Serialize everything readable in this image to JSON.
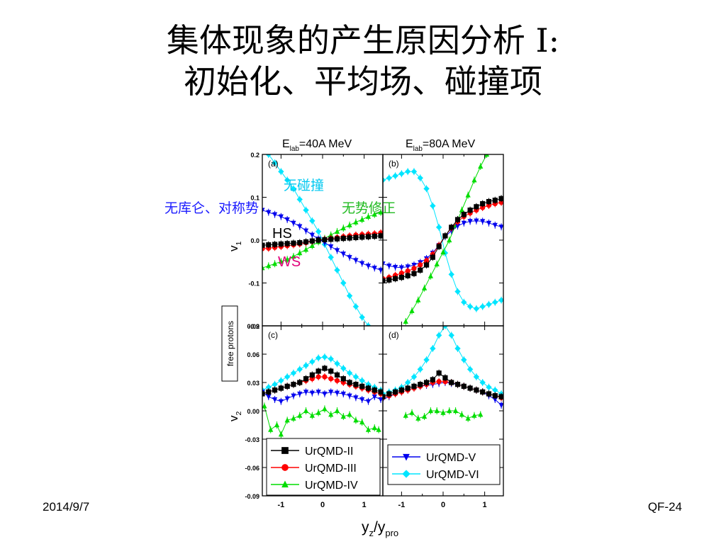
{
  "title": {
    "line1": "集体现象的产生原因分析 I:",
    "line2": "初始化、平均场、碰撞项"
  },
  "footer": {
    "date": "2014/9/7",
    "slide_id": "QF-24"
  },
  "annotations": {
    "no_collision": "无碰撞",
    "no_coulomb_symmetry": "无库仑、对称势",
    "no_potential_correction": "无势修正",
    "hs": "HS",
    "ws": "WS"
  },
  "colors": {
    "UrQMD-II": "#000000",
    "UrQMD-III": "#ff0000",
    "UrQMD-IV": "#00dd00",
    "UrQMD-V": "#0000ee",
    "UrQMD-VI": "#00e5ff",
    "annot_blue": "#1a1aff",
    "annot_cyan": "#00c8f0",
    "annot_green": "#22bb22",
    "annot_magenta": "#e0007a"
  },
  "chart_data": [
    {
      "type": "scatter",
      "panel": "(a)",
      "column_label": "E_lab=40A MeV",
      "ylabel": "v_1",
      "ylim": [
        -0.2,
        0.2
      ],
      "yticks": [
        "0.2",
        "0.1",
        "0.0",
        "-0.1",
        "-0.2"
      ],
      "xlim": [
        -1.45,
        1.45
      ],
      "series": [
        {
          "name": "UrQMD-II",
          "x": [
            -1.45,
            -1.3,
            -1.15,
            -1.0,
            -0.85,
            -0.7,
            -0.55,
            -0.4,
            -0.25,
            -0.1,
            0.05,
            0.2,
            0.35,
            0.5,
            0.65,
            0.8,
            0.95,
            1.1,
            1.25,
            1.4
          ],
          "y": [
            -0.012,
            -0.011,
            -0.01,
            -0.009,
            -0.008,
            -0.007,
            -0.006,
            -0.004,
            -0.002,
            0.0,
            0.001,
            0.002,
            0.003,
            0.004,
            0.005,
            0.006,
            0.007,
            0.008,
            0.009,
            0.01
          ]
        },
        {
          "name": "UrQMD-III",
          "x": [
            -1.45,
            -1.3,
            -1.15,
            -1.0,
            -0.85,
            -0.7,
            -0.55,
            -0.4,
            -0.25,
            -0.1,
            0.05,
            0.2,
            0.35,
            0.5,
            0.65,
            0.8,
            0.95,
            1.1,
            1.25,
            1.4
          ],
          "y": [
            -0.02,
            -0.019,
            -0.017,
            -0.015,
            -0.013,
            -0.011,
            -0.009,
            -0.006,
            -0.003,
            0.0,
            0.002,
            0.004,
            0.006,
            0.008,
            0.01,
            0.012,
            0.013,
            0.014,
            0.015,
            0.017
          ]
        },
        {
          "name": "UrQMD-IV",
          "x": [
            -1.45,
            -1.3,
            -1.15,
            -1.0,
            -0.85,
            -0.7,
            -0.55,
            -0.4,
            -0.25,
            -0.1,
            0.05,
            0.2,
            0.35,
            0.5,
            0.65,
            0.8,
            0.95,
            1.1,
            1.25,
            1.4
          ],
          "y": [
            -0.065,
            -0.06,
            -0.055,
            -0.05,
            -0.045,
            -0.038,
            -0.03,
            -0.022,
            -0.013,
            -0.004,
            0.004,
            0.012,
            0.02,
            0.028,
            0.035,
            0.042,
            0.048,
            0.055,
            0.06,
            0.065
          ]
        },
        {
          "name": "UrQMD-V",
          "x": [
            -1.45,
            -1.3,
            -1.15,
            -1.0,
            -0.85,
            -0.7,
            -0.55,
            -0.4,
            -0.25,
            -0.1,
            0.05,
            0.2,
            0.35,
            0.5,
            0.65,
            0.8,
            0.95,
            1.1,
            1.25,
            1.4
          ],
          "y": [
            0.07,
            0.065,
            0.06,
            0.055,
            0.048,
            0.04,
            0.032,
            0.022,
            0.012,
            0.003,
            -0.006,
            -0.015,
            -0.024,
            -0.032,
            -0.04,
            -0.047,
            -0.054,
            -0.06,
            -0.065,
            -0.07
          ]
        },
        {
          "name": "UrQMD-VI",
          "x": [
            -1.3,
            -1.15,
            -1.0,
            -0.85,
            -0.7,
            -0.55,
            -0.4,
            -0.25,
            -0.1,
            0.05,
            0.2,
            0.35,
            0.5,
            0.65,
            0.8,
            0.95,
            1.1
          ],
          "y": [
            0.2,
            0.18,
            0.16,
            0.14,
            0.12,
            0.095,
            0.07,
            0.045,
            0.02,
            -0.01,
            -0.04,
            -0.07,
            -0.1,
            -0.13,
            -0.155,
            -0.18,
            -0.2
          ]
        }
      ]
    },
    {
      "type": "scatter",
      "panel": "(b)",
      "column_label": "E_lab=80A MeV",
      "ylabel": "v_1",
      "ylim": [
        -0.2,
        0.2
      ],
      "xlim": [
        -1.45,
        1.45
      ],
      "series": [
        {
          "name": "UrQMD-II",
          "x": [
            -1.45,
            -1.3,
            -1.15,
            -1.0,
            -0.85,
            -0.7,
            -0.55,
            -0.4,
            -0.25,
            -0.1,
            0.05,
            0.2,
            0.35,
            0.5,
            0.65,
            0.8,
            0.95,
            1.1,
            1.25,
            1.4
          ],
          "y": [
            -0.095,
            -0.093,
            -0.09,
            -0.087,
            -0.083,
            -0.078,
            -0.07,
            -0.058,
            -0.04,
            -0.015,
            0.01,
            0.03,
            0.048,
            0.06,
            0.07,
            0.078,
            0.085,
            0.09,
            0.093,
            0.097
          ]
        },
        {
          "name": "UrQMD-III",
          "x": [
            -1.45,
            -1.3,
            -1.15,
            -1.0,
            -0.85,
            -0.7,
            -0.55,
            -0.4,
            -0.25,
            -0.1,
            0.05,
            0.2,
            0.35,
            0.5,
            0.65,
            0.8,
            0.95,
            1.1,
            1.25,
            1.4
          ],
          "y": [
            -0.09,
            -0.087,
            -0.082,
            -0.077,
            -0.072,
            -0.066,
            -0.058,
            -0.048,
            -0.033,
            -0.012,
            0.01,
            0.028,
            0.043,
            0.055,
            0.063,
            0.07,
            0.076,
            0.081,
            0.085,
            0.088
          ]
        },
        {
          "name": "UrQMD-IV",
          "x": [
            -0.9,
            -0.75,
            -0.6,
            -0.45,
            -0.3,
            -0.15,
            0.0,
            0.15,
            0.3,
            0.45,
            0.6,
            0.75,
            0.9,
            1.05
          ],
          "y": [
            -0.19,
            -0.165,
            -0.14,
            -0.112,
            -0.084,
            -0.056,
            -0.028,
            0.0,
            0.035,
            0.07,
            0.105,
            0.14,
            0.172,
            0.2
          ]
        },
        {
          "name": "UrQMD-V",
          "x": [
            -1.45,
            -1.3,
            -1.15,
            -1.0,
            -0.85,
            -0.7,
            -0.55,
            -0.4,
            -0.25,
            -0.1,
            0.05,
            0.2,
            0.35,
            0.5,
            0.65,
            0.8,
            0.95,
            1.1,
            1.25,
            1.4
          ],
          "y": [
            -0.055,
            -0.06,
            -0.063,
            -0.064,
            -0.062,
            -0.058,
            -0.052,
            -0.043,
            -0.03,
            -0.012,
            0.008,
            0.022,
            0.033,
            0.04,
            0.044,
            0.045,
            0.044,
            0.04,
            0.035,
            0.031
          ]
        },
        {
          "name": "UrQMD-VI",
          "x": [
            -1.45,
            -1.3,
            -1.15,
            -1.0,
            -0.85,
            -0.7,
            -0.55,
            -0.4,
            -0.25,
            -0.1,
            0.05,
            0.2,
            0.35,
            0.5,
            0.65,
            0.8,
            0.95,
            1.1,
            1.25,
            1.4
          ],
          "y": [
            0.14,
            0.145,
            0.15,
            0.155,
            0.16,
            0.16,
            0.145,
            0.12,
            0.08,
            0.03,
            -0.03,
            -0.08,
            -0.12,
            -0.145,
            -0.155,
            -0.16,
            -0.155,
            -0.15,
            -0.145,
            -0.14
          ]
        }
      ]
    },
    {
      "type": "scatter",
      "panel": "(c)",
      "ylabel": "v_2",
      "outer_label": "free protons",
      "ylim": [
        -0.09,
        0.09
      ],
      "yticks": [
        "0.09",
        "0.06",
        "0.03",
        "0.00",
        "-0.03",
        "-0.06",
        "-0.09"
      ],
      "xlim": [
        -1.45,
        1.45
      ],
      "xticks": [
        "-1",
        "0",
        "1"
      ],
      "series": [
        {
          "name": "UrQMD-II",
          "x": [
            -1.45,
            -1.3,
            -1.15,
            -1.0,
            -0.85,
            -0.7,
            -0.55,
            -0.4,
            -0.25,
            -0.1,
            0.05,
            0.2,
            0.35,
            0.5,
            0.65,
            0.8,
            0.95,
            1.1,
            1.25,
            1.4
          ],
          "y": [
            0.018,
            0.02,
            0.022,
            0.024,
            0.026,
            0.028,
            0.03,
            0.034,
            0.038,
            0.042,
            0.045,
            0.042,
            0.038,
            0.034,
            0.03,
            0.028,
            0.026,
            0.024,
            0.022,
            0.02
          ]
        },
        {
          "name": "UrQMD-III",
          "x": [
            -1.45,
            -1.3,
            -1.15,
            -1.0,
            -0.85,
            -0.7,
            -0.55,
            -0.4,
            -0.25,
            -0.1,
            0.05,
            0.2,
            0.35,
            0.5,
            0.65,
            0.8,
            0.95,
            1.1,
            1.25,
            1.4
          ],
          "y": [
            0.018,
            0.02,
            0.022,
            0.024,
            0.026,
            0.028,
            0.03,
            0.032,
            0.034,
            0.036,
            0.036,
            0.034,
            0.032,
            0.03,
            0.028,
            0.026,
            0.024,
            0.022,
            0.02,
            0.018
          ]
        },
        {
          "name": "UrQMD-IV",
          "x": [
            -1.4,
            -1.25,
            -1.1,
            -1.0,
            -0.85,
            -0.7,
            -0.55,
            -0.4,
            -0.25,
            -0.1,
            0.05,
            0.2,
            0.35,
            0.5,
            0.65,
            0.8,
            0.95,
            1.1,
            1.25,
            1.35
          ],
          "y": [
            0.005,
            -0.02,
            -0.015,
            -0.025,
            -0.01,
            -0.008,
            -0.005,
            0.0,
            -0.005,
            -0.002,
            0.002,
            -0.004,
            0.0,
            -0.006,
            -0.004,
            -0.01,
            -0.012,
            -0.02,
            -0.018,
            -0.02
          ]
        },
        {
          "name": "UrQMD-V",
          "x": [
            -1.45,
            -1.3,
            -1.15,
            -1.0,
            -0.85,
            -0.7,
            -0.55,
            -0.4,
            -0.25,
            -0.1,
            0.05,
            0.2,
            0.35,
            0.5,
            0.65,
            0.8,
            0.95,
            1.1,
            1.25,
            1.4
          ],
          "y": [
            0.02,
            0.015,
            0.012,
            0.01,
            0.013,
            0.016,
            0.018,
            0.02,
            0.019,
            0.02,
            0.018,
            0.02,
            0.019,
            0.018,
            0.016,
            0.014,
            0.012,
            0.01,
            0.015,
            0.012
          ]
        },
        {
          "name": "UrQMD-VI",
          "x": [
            -1.45,
            -1.3,
            -1.15,
            -1.0,
            -0.85,
            -0.7,
            -0.55,
            -0.4,
            -0.25,
            -0.1,
            0.05,
            0.2,
            0.35,
            0.5,
            0.65,
            0.8,
            0.95,
            1.1,
            1.25,
            1.4
          ],
          "y": [
            0.022,
            0.025,
            0.028,
            0.032,
            0.036,
            0.04,
            0.044,
            0.048,
            0.052,
            0.056,
            0.057,
            0.055,
            0.05,
            0.045,
            0.04,
            0.036,
            0.032,
            0.028,
            0.025,
            0.022
          ]
        }
      ]
    },
    {
      "type": "scatter",
      "panel": "(d)",
      "ylabel": "v_2",
      "ylim": [
        -0.09,
        0.09
      ],
      "xlim": [
        -1.45,
        1.45
      ],
      "xticks": [
        "-1",
        "0",
        "1"
      ],
      "xlabel": "y_z/y_pro",
      "series": [
        {
          "name": "UrQMD-II",
          "x": [
            -1.45,
            -1.3,
            -1.15,
            -1.0,
            -0.85,
            -0.7,
            -0.55,
            -0.4,
            -0.25,
            -0.1,
            0.05,
            0.2,
            0.35,
            0.5,
            0.65,
            0.8,
            0.95,
            1.1,
            1.25,
            1.4
          ],
          "y": [
            0.015,
            0.018,
            0.02,
            0.022,
            0.024,
            0.026,
            0.028,
            0.03,
            0.033,
            0.04,
            0.035,
            0.03,
            0.028,
            0.026,
            0.024,
            0.022,
            0.02,
            0.018,
            0.016,
            0.015
          ]
        },
        {
          "name": "UrQMD-III",
          "x": [
            -1.45,
            -1.3,
            -1.15,
            -1.0,
            -0.85,
            -0.7,
            -0.55,
            -0.4,
            -0.25,
            -0.1,
            0.05,
            0.2,
            0.35,
            0.5,
            0.65,
            0.8,
            0.95,
            1.1,
            1.25,
            1.4
          ],
          "y": [
            0.014,
            0.016,
            0.018,
            0.02,
            0.022,
            0.024,
            0.026,
            0.028,
            0.03,
            0.031,
            0.031,
            0.03,
            0.028,
            0.026,
            0.024,
            0.022,
            0.02,
            0.018,
            0.016,
            0.014
          ]
        },
        {
          "name": "UrQMD-IV",
          "x": [
            -0.9,
            -0.75,
            -0.6,
            -0.45,
            -0.3,
            -0.15,
            0.0,
            0.15,
            0.3,
            0.45,
            0.6,
            0.75,
            0.9
          ],
          "y": [
            -0.005,
            -0.002,
            -0.008,
            -0.006,
            0.0,
            0.0,
            -0.002,
            0.0,
            0.0,
            -0.004,
            -0.008,
            -0.005,
            -0.004
          ]
        },
        {
          "name": "UrQMD-V",
          "x": [
            -1.45,
            -1.3,
            -1.15,
            -1.0,
            -0.85,
            -0.7,
            -0.55,
            -0.4,
            -0.25,
            -0.1,
            0.05,
            0.2,
            0.35,
            0.5,
            0.65,
            0.8,
            0.95,
            1.1,
            1.25,
            1.4
          ],
          "y": [
            0.012,
            0.015,
            0.018,
            0.02,
            0.022,
            0.024,
            0.026,
            0.027,
            0.028,
            0.029,
            0.03,
            0.029,
            0.028,
            0.026,
            0.024,
            0.022,
            0.02,
            0.016,
            0.012,
            0.006
          ]
        },
        {
          "name": "UrQMD-VI",
          "x": [
            -1.45,
            -1.3,
            -1.15,
            -1.0,
            -0.85,
            -0.7,
            -0.55,
            -0.4,
            -0.25,
            -0.1,
            0.05,
            0.2,
            0.35,
            0.5,
            0.65,
            0.8,
            0.95,
            1.1,
            1.25,
            1.4
          ],
          "y": [
            0.018,
            0.02,
            0.022,
            0.025,
            0.03,
            0.036,
            0.044,
            0.054,
            0.066,
            0.08,
            0.09,
            0.08,
            0.066,
            0.054,
            0.044,
            0.036,
            0.03,
            0.025,
            0.022,
            0.018
          ]
        }
      ]
    }
  ],
  "legend": {
    "left": [
      "UrQMD-II",
      "UrQMD-III",
      "UrQMD-IV"
    ],
    "right": [
      "UrQMD-V",
      "UrQMD-VI"
    ]
  },
  "axis_text": {
    "column_a_main": "E",
    "column_a_sub": "lab",
    "column_a_rest": "=40A MeV",
    "column_b_main": "E",
    "column_b_sub": "lab",
    "column_b_rest": "=80A MeV",
    "v1_main": "v",
    "v1_sub": "1",
    "v2_main": "v",
    "v2_sub": "2",
    "free_protons": "free protons",
    "xlabel_y": "y",
    "xlabel_z": "z",
    "xlabel_slash": "/y",
    "xlabel_pro": "pro"
  }
}
